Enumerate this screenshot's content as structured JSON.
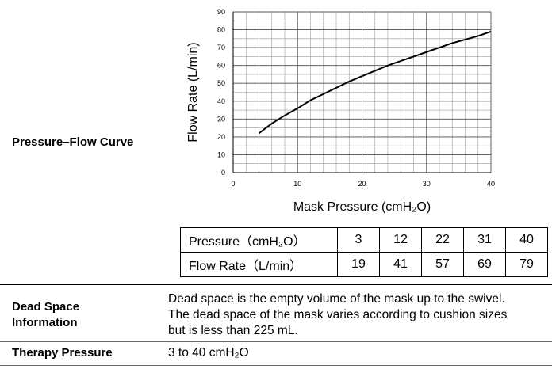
{
  "section_labels": {
    "curve": "Pressure–Flow Curve",
    "dead_space": "Dead Space Information",
    "therapy": "Therapy Pressure"
  },
  "chart_data": {
    "type": "line",
    "title": "",
    "xlabel": "Mask Pressure (cmH₂O)",
    "ylabel": "Flow Rate (L/min)",
    "xlim": [
      0,
      40
    ],
    "ylim": [
      0,
      90
    ],
    "xticks": [
      0,
      10,
      20,
      30,
      40
    ],
    "yticks": [
      0,
      10,
      20,
      30,
      40,
      50,
      60,
      70,
      80,
      90
    ],
    "grid": true,
    "series": [
      {
        "name": "Flow",
        "x": [
          4,
          6,
          8,
          10,
          12,
          14,
          16,
          18,
          20,
          22,
          24,
          26,
          28,
          30,
          32,
          34,
          36,
          38,
          40
        ],
        "y": [
          22,
          27.5,
          32,
          36,
          40.5,
          44,
          47.5,
          51,
          54,
          57,
          60,
          62.5,
          65,
          67.5,
          70,
          72.5,
          74.5,
          76.5,
          79
        ]
      }
    ]
  },
  "pf_table": {
    "pressure_label": "Pressure（cmH₂O）",
    "flow_label": "Flow Rate（L/min）",
    "pressure_values": [
      "3",
      "12",
      "22",
      "31",
      "40"
    ],
    "flow_values": [
      "19",
      "41",
      "57",
      "69",
      "79"
    ]
  },
  "dead_space_text": {
    "line1": "Dead space is the empty volume of the mask up to the swivel.",
    "line2": "The dead space of the mask varies according to cushion sizes",
    "line3": "but is less than 225 mL."
  },
  "therapy_pressure_value": "3 to 40 cmH₂O"
}
